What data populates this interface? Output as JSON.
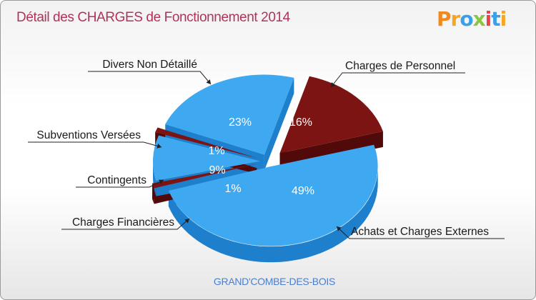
{
  "page": {
    "title": "Détail des CHARGES de Fonctionnement 2014",
    "commune": "GRAND'COMBE-DES-BOIS",
    "logo_text": "Proxiti"
  },
  "colors": {
    "blue": "#3ea8f0",
    "blue_dark": "#1e7fcc",
    "red": "#7c1414",
    "red_dark": "#520909",
    "title": "#b03359"
  },
  "chart_data": {
    "type": "pie",
    "title": "Détail des CHARGES de Fonctionnement 2014",
    "unit": "%",
    "slices": [
      {
        "label": "Charges de Personnel",
        "value": 16,
        "display": "16%",
        "color": "#7c1414"
      },
      {
        "label": "Achats et Charges Externes",
        "value": 49,
        "display": "49%",
        "color": "#3ea8f0"
      },
      {
        "label": "Charges Financières",
        "value": 1,
        "display": "1%",
        "color": "#7c1414"
      },
      {
        "label": "Contingents",
        "value": 9,
        "display": "9%",
        "color": "#3ea8f0"
      },
      {
        "label": "Subventions Versées",
        "value": 1,
        "display": "1%",
        "color": "#7c1414"
      },
      {
        "label": "Divers Non Détaillé",
        "value": 23,
        "display": "23%",
        "color": "#3ea8f0"
      }
    ]
  }
}
